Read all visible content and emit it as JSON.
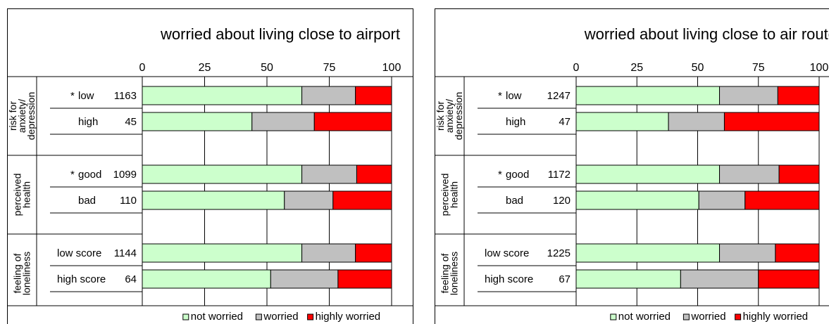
{
  "chart_data": [
    {
      "type": "bar",
      "orientation": "horizontal",
      "stacked": true,
      "title": "worried about living close to airport",
      "xlim": [
        0,
        100
      ],
      "xticks": [
        "0",
        "25",
        "50",
        "75",
        "100"
      ],
      "groups": [
        {
          "label": "risk for anxiety/ depression",
          "lines": [
            "risk for",
            "anxiety/",
            "depression"
          ],
          "rows": [
            {
              "marker": "*",
              "label": "low",
              "n": "1163",
              "values": [
                64,
                21.5,
                14.5
              ]
            },
            {
              "marker": "",
              "label": "high",
              "n": "45",
              "values": [
                44,
                25,
                31
              ]
            }
          ]
        },
        {
          "label": "perceived health",
          "lines": [
            "perceived",
            "health"
          ],
          "rows": [
            {
              "marker": "*",
              "label": "good",
              "n": "1099",
              "values": [
                64,
                22,
                14
              ]
            },
            {
              "marker": "",
              "label": "bad",
              "n": "110",
              "values": [
                57,
                19.5,
                23.5
              ]
            }
          ]
        },
        {
          "label": "feeling of loneliness",
          "lines": [
            "feeling of",
            "loneliness"
          ],
          "rows": [
            {
              "marker": "",
              "label": "low score",
              "n": "1144",
              "values": [
                64,
                21.5,
                14.5
              ]
            },
            {
              "marker": "",
              "label": "high score",
              "n": "64",
              "values": [
                51.5,
                27,
                21.5
              ]
            }
          ]
        }
      ],
      "series": [
        {
          "name": "not worried",
          "color": "#ccffcc"
        },
        {
          "name": "worried",
          "color": "#c0c0c0"
        },
        {
          "name": "highly worried",
          "color": "#ff0000"
        }
      ],
      "grid": true,
      "legend": "bottom-right"
    },
    {
      "type": "bar",
      "orientation": "horizontal",
      "stacked": true,
      "title": "worried about living close to air route",
      "xlim": [
        0,
        100
      ],
      "xticks": [
        "0",
        "25",
        "50",
        "75",
        "100"
      ],
      "groups": [
        {
          "label": "risk for anxiety/ depression",
          "lines": [
            "risk for",
            "anxiety/",
            "depression"
          ],
          "rows": [
            {
              "marker": "*",
              "label": "low",
              "n": "1247",
              "values": [
                59,
                24,
                17
              ]
            },
            {
              "marker": "",
              "label": "high",
              "n": "47",
              "values": [
                38,
                23,
                39
              ]
            }
          ]
        },
        {
          "label": "perceived health",
          "lines": [
            "perceived",
            "health"
          ],
          "rows": [
            {
              "marker": "*",
              "label": "good",
              "n": "1172",
              "values": [
                59,
                24.5,
                16.5
              ]
            },
            {
              "marker": "",
              "label": "bad",
              "n": "120",
              "values": [
                50.5,
                19,
                30.5
              ]
            }
          ]
        },
        {
          "label": "feeling of loneliness",
          "lines": [
            "feeling of",
            "loneliness"
          ],
          "rows": [
            {
              "marker": "",
              "label": "low score",
              "n": "1225",
              "values": [
                59,
                23,
                18
              ]
            },
            {
              "marker": "",
              "label": "high score",
              "n": "67",
              "values": [
                43,
                32,
                25
              ]
            }
          ]
        }
      ],
      "series": [
        {
          "name": "not worried",
          "color": "#ccffcc"
        },
        {
          "name": "worried",
          "color": "#c0c0c0"
        },
        {
          "name": "highly worried",
          "color": "#ff0000"
        }
      ],
      "grid": true,
      "legend": "bottom-right"
    }
  ]
}
